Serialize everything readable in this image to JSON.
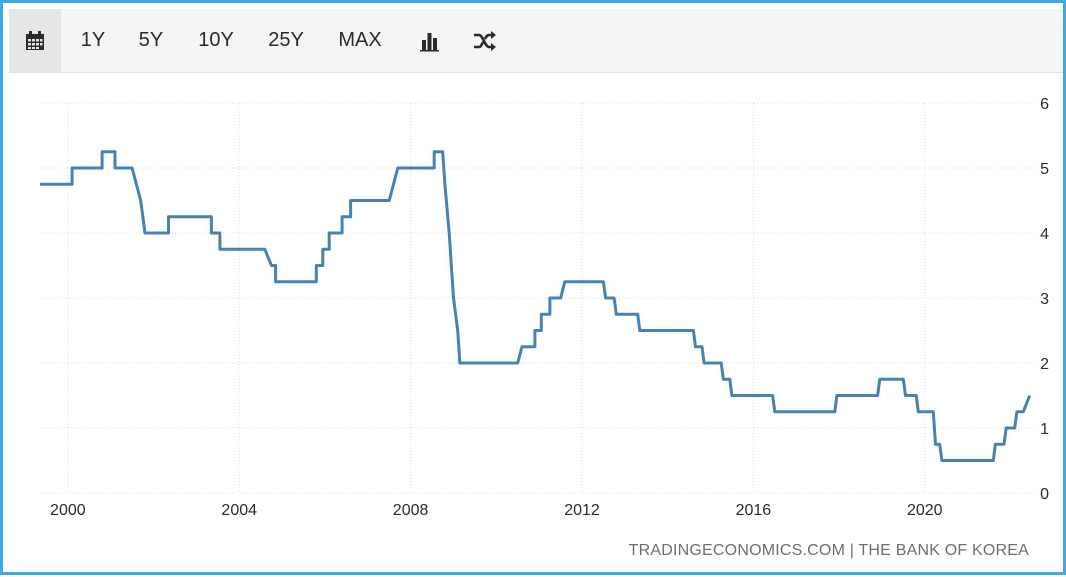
{
  "toolbar": {
    "buttons": [
      {
        "label": "1Y"
      },
      {
        "label": "5Y"
      },
      {
        "label": "10Y"
      },
      {
        "label": "25Y"
      },
      {
        "label": "MAX"
      }
    ],
    "icons": [
      "calendar-icon",
      "bar-chart-icon",
      "shuffle-icon"
    ]
  },
  "credit": "TRADINGECONOMICS.COM | THE BANK OF KOREA",
  "colors": {
    "line": "#4682b4",
    "frame": "#3fa9e8",
    "grid": "#dcdcdc"
  },
  "chart_data": {
    "type": "line",
    "title": "",
    "xlabel": "",
    "ylabel": "",
    "xlim": [
      1999.35,
      2022.55
    ],
    "ylim": [
      0,
      6
    ],
    "x_ticks": [
      "2000",
      "2004",
      "2008",
      "2012",
      "2016",
      "2020"
    ],
    "y_ticks": [
      "0",
      "1",
      "2",
      "3",
      "4",
      "5",
      "6"
    ],
    "grid": true,
    "legend": "none",
    "series": [
      {
        "points": [
          [
            1999.35,
            4.75
          ],
          [
            2000.1,
            4.75
          ],
          [
            2000.1,
            5.0
          ],
          [
            2000.8,
            5.0
          ],
          [
            2000.8,
            5.25
          ],
          [
            2001.1,
            5.25
          ],
          [
            2001.1,
            5.0
          ],
          [
            2001.5,
            5.0
          ],
          [
            2001.6,
            4.75
          ],
          [
            2001.7,
            4.5
          ],
          [
            2001.8,
            4.0
          ],
          [
            2002.35,
            4.0
          ],
          [
            2002.35,
            4.25
          ],
          [
            2003.35,
            4.25
          ],
          [
            2003.35,
            4.0
          ],
          [
            2003.55,
            4.0
          ],
          [
            2003.55,
            3.75
          ],
          [
            2004.6,
            3.75
          ],
          [
            2004.75,
            3.5
          ],
          [
            2004.85,
            3.5
          ],
          [
            2004.85,
            3.25
          ],
          [
            2005.8,
            3.25
          ],
          [
            2005.8,
            3.5
          ],
          [
            2005.95,
            3.5
          ],
          [
            2005.95,
            3.75
          ],
          [
            2006.1,
            3.75
          ],
          [
            2006.1,
            4.0
          ],
          [
            2006.4,
            4.0
          ],
          [
            2006.4,
            4.25
          ],
          [
            2006.6,
            4.25
          ],
          [
            2006.6,
            4.5
          ],
          [
            2007.5,
            4.5
          ],
          [
            2007.6,
            4.75
          ],
          [
            2007.7,
            5.0
          ],
          [
            2008.55,
            5.0
          ],
          [
            2008.55,
            5.25
          ],
          [
            2008.75,
            5.25
          ],
          [
            2008.8,
            4.75
          ],
          [
            2008.9,
            4.0
          ],
          [
            2009.0,
            3.0
          ],
          [
            2009.1,
            2.5
          ],
          [
            2009.15,
            2.0
          ],
          [
            2010.5,
            2.0
          ],
          [
            2010.6,
            2.25
          ],
          [
            2010.9,
            2.25
          ],
          [
            2010.9,
            2.5
          ],
          [
            2011.05,
            2.5
          ],
          [
            2011.05,
            2.75
          ],
          [
            2011.25,
            2.75
          ],
          [
            2011.25,
            3.0
          ],
          [
            2011.5,
            3.0
          ],
          [
            2011.6,
            3.25
          ],
          [
            2012.5,
            3.25
          ],
          [
            2012.55,
            3.0
          ],
          [
            2012.75,
            3.0
          ],
          [
            2012.8,
            2.75
          ],
          [
            2013.3,
            2.75
          ],
          [
            2013.35,
            2.5
          ],
          [
            2014.6,
            2.5
          ],
          [
            2014.65,
            2.25
          ],
          [
            2014.8,
            2.25
          ],
          [
            2014.85,
            2.0
          ],
          [
            2015.25,
            2.0
          ],
          [
            2015.3,
            1.75
          ],
          [
            2015.45,
            1.75
          ],
          [
            2015.5,
            1.5
          ],
          [
            2016.45,
            1.5
          ],
          [
            2016.5,
            1.25
          ],
          [
            2017.9,
            1.25
          ],
          [
            2017.95,
            1.5
          ],
          [
            2018.9,
            1.5
          ],
          [
            2018.95,
            1.75
          ],
          [
            2019.5,
            1.75
          ],
          [
            2019.55,
            1.5
          ],
          [
            2019.8,
            1.5
          ],
          [
            2019.85,
            1.25
          ],
          [
            2020.2,
            1.25
          ],
          [
            2020.25,
            0.75
          ],
          [
            2020.35,
            0.75
          ],
          [
            2020.4,
            0.5
          ],
          [
            2021.6,
            0.5
          ],
          [
            2021.65,
            0.75
          ],
          [
            2021.85,
            0.75
          ],
          [
            2021.9,
            1.0
          ],
          [
            2022.1,
            1.0
          ],
          [
            2022.15,
            1.25
          ],
          [
            2022.3,
            1.25
          ],
          [
            2022.45,
            1.5
          ]
        ]
      }
    ]
  }
}
